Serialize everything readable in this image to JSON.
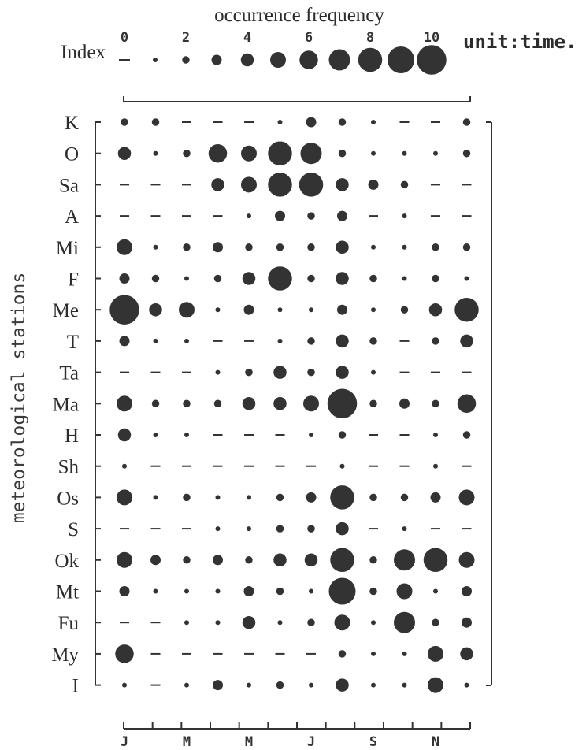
{
  "chart_data": {
    "type": "scatter",
    "title": "occurrence frequency",
    "ylabel": "meteorological stations",
    "legend": {
      "label": "Index",
      "unit_text": "unit:time.",
      "tick_labels": [
        "0",
        "2",
        "4",
        "6",
        "8",
        "10"
      ],
      "levels": [
        0,
        1,
        2,
        3,
        4,
        5,
        6,
        7,
        8,
        9,
        10
      ]
    },
    "month_labels": [
      "J",
      "M",
      "M",
      "J",
      "S",
      "N"
    ],
    "months": [
      1,
      2,
      3,
      4,
      5,
      6,
      7,
      8,
      9,
      10,
      11,
      12
    ],
    "stations": [
      "K",
      "O",
      "Sa",
      "A",
      "Mi",
      "F",
      "Me",
      "T",
      "Ta",
      "Ma",
      "H",
      "Sh",
      "Os",
      "S",
      "Ok",
      "Mt",
      "Fu",
      "My",
      "I"
    ],
    "values": [
      [
        2,
        2,
        0,
        0,
        0,
        1,
        3,
        2,
        1,
        0,
        0,
        2
      ],
      [
        4,
        1,
        2,
        6,
        5,
        8,
        7,
        2,
        1,
        1,
        1,
        2
      ],
      [
        0,
        0,
        0,
        4,
        5,
        8,
        8,
        4,
        3,
        2,
        0,
        0
      ],
      [
        0,
        0,
        0,
        0,
        1,
        3,
        2,
        3,
        0,
        1,
        0,
        0
      ],
      [
        5,
        1,
        2,
        3,
        2,
        2,
        2,
        4,
        1,
        1,
        2,
        2
      ],
      [
        3,
        2,
        1,
        2,
        4,
        8,
        2,
        4,
        2,
        1,
        2,
        1
      ],
      [
        10,
        4,
        5,
        1,
        3,
        1,
        1,
        3,
        1,
        2,
        4,
        8
      ],
      [
        3,
        1,
        1,
        0,
        0,
        1,
        2,
        4,
        2,
        0,
        2,
        4
      ],
      [
        0,
        0,
        0,
        1,
        2,
        4,
        2,
        4,
        1,
        0,
        0,
        0
      ],
      [
        5,
        2,
        2,
        2,
        4,
        4,
        5,
        10,
        2,
        3,
        2,
        6
      ],
      [
        4,
        1,
        1,
        0,
        0,
        0,
        1,
        2,
        0,
        0,
        1,
        2
      ],
      [
        1,
        0,
        0,
        0,
        0,
        0,
        0,
        1,
        0,
        0,
        1,
        0
      ],
      [
        5,
        1,
        2,
        1,
        1,
        2,
        3,
        8,
        2,
        2,
        3,
        5
      ],
      [
        0,
        0,
        0,
        1,
        1,
        2,
        2,
        4,
        0,
        1,
        0,
        0
      ],
      [
        5,
        3,
        2,
        3,
        2,
        4,
        4,
        8,
        2,
        7,
        8,
        5
      ],
      [
        3,
        1,
        1,
        1,
        3,
        2,
        1,
        9,
        2,
        5,
        1,
        3
      ],
      [
        0,
        0,
        1,
        1,
        4,
        1,
        2,
        5,
        1,
        7,
        2,
        3
      ],
      [
        6,
        0,
        0,
        0,
        0,
        0,
        0,
        2,
        1,
        1,
        5,
        4
      ],
      [
        1,
        0,
        1,
        3,
        1,
        2,
        1,
        4,
        1,
        1,
        5,
        1
      ]
    ],
    "zero_marker": "dash",
    "grid": false
  }
}
